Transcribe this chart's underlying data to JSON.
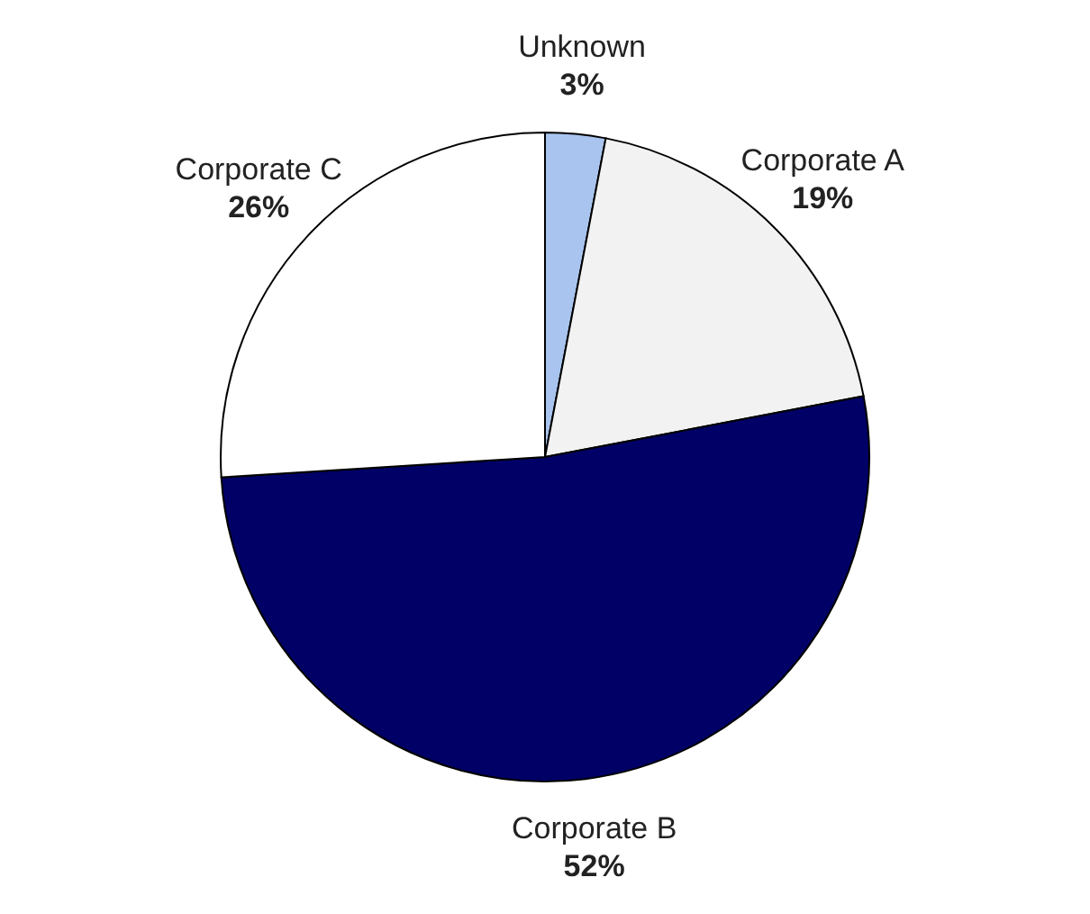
{
  "chart_data": {
    "type": "pie",
    "categories": [
      "Unknown",
      "Corporate A",
      "Corporate B",
      "Corporate C"
    ],
    "values": [
      3,
      19,
      52,
      26
    ],
    "colors": [
      "#a9c4ee",
      "#f2f2f2",
      "#000066",
      "#ffffff"
    ],
    "value_labels": [
      "3%",
      "19%",
      "52%",
      "26%"
    ]
  }
}
